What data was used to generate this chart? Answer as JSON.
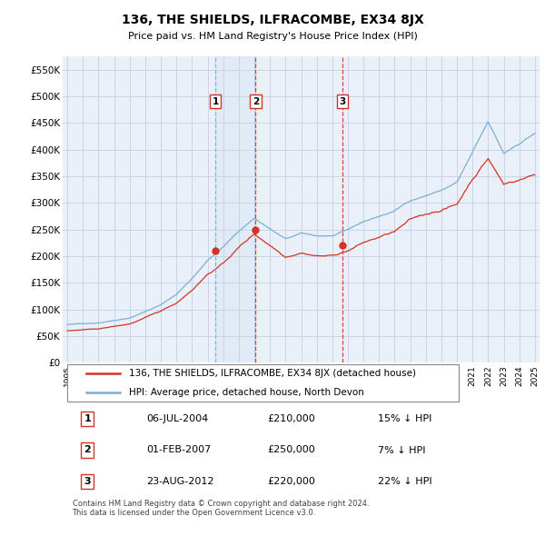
{
  "title": "136, THE SHIELDS, ILFRACOMBE, EX34 8JX",
  "subtitle": "Price paid vs. HM Land Registry's House Price Index (HPI)",
  "background_color": "#ffffff",
  "plot_bg_color": "#eaf0f8",
  "grid_color": "#c8d4e8",
  "ylim": [
    0,
    575000
  ],
  "yticks": [
    0,
    50000,
    100000,
    150000,
    200000,
    250000,
    300000,
    350000,
    400000,
    450000,
    500000,
    550000
  ],
  "ytick_labels": [
    "£0",
    "£50K",
    "£100K",
    "£150K",
    "£200K",
    "£250K",
    "£300K",
    "£350K",
    "£400K",
    "£450K",
    "£500K",
    "£550K"
  ],
  "sale_dates": [
    2004.5,
    2007.08,
    2012.64
  ],
  "sale_prices": [
    210000,
    250000,
    220000
  ],
  "sale_labels": [
    "1",
    "2",
    "3"
  ],
  "sale_line_styles": [
    "--",
    "--",
    "--"
  ],
  "sale_line_colors": [
    "#7bafd4",
    "#d73027",
    "#d73027"
  ],
  "legend_line1": "136, THE SHIELDS, ILFRACOMBE, EX34 8JX (detached house)",
  "legend_line2": "HPI: Average price, detached house, North Devon",
  "table_rows": [
    [
      "1",
      "06-JUL-2004",
      "£210,000",
      "15% ↓ HPI"
    ],
    [
      "2",
      "01-FEB-2007",
      "£250,000",
      "7% ↓ HPI"
    ],
    [
      "3",
      "23-AUG-2012",
      "£220,000",
      "22% ↓ HPI"
    ]
  ],
  "footer": "Contains HM Land Registry data © Crown copyright and database right 2024.\nThis data is licensed under the Open Government Licence v3.0.",
  "hpi_color": "#7bafd4",
  "price_color": "#d73027",
  "shade_between_1_2": true,
  "shade_color": "#cce0f0"
}
